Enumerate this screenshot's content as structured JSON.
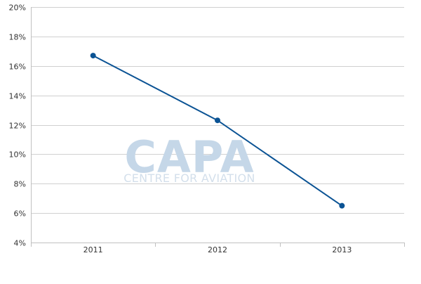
{
  "chart_data": {
    "type": "line",
    "title": "",
    "xlabel": "",
    "ylabel": "",
    "categories": [
      "2011",
      "2012",
      "2013"
    ],
    "series": [
      {
        "values": [
          16.7,
          12.3,
          6.5
        ],
        "color": "#0b5394"
      }
    ],
    "ylim": [
      4,
      20
    ],
    "yticks": [
      4,
      6,
      8,
      10,
      12,
      14,
      16,
      18,
      20
    ],
    "ytick_labels": [
      "4%",
      "6%",
      "8%",
      "10%",
      "12%",
      "14%",
      "16%",
      "18%",
      "20%"
    ],
    "grid": true,
    "legend": "none"
  },
  "watermark": {
    "logo_text": "CAPA",
    "tagline": "CENTRE FOR AVIATION"
  }
}
